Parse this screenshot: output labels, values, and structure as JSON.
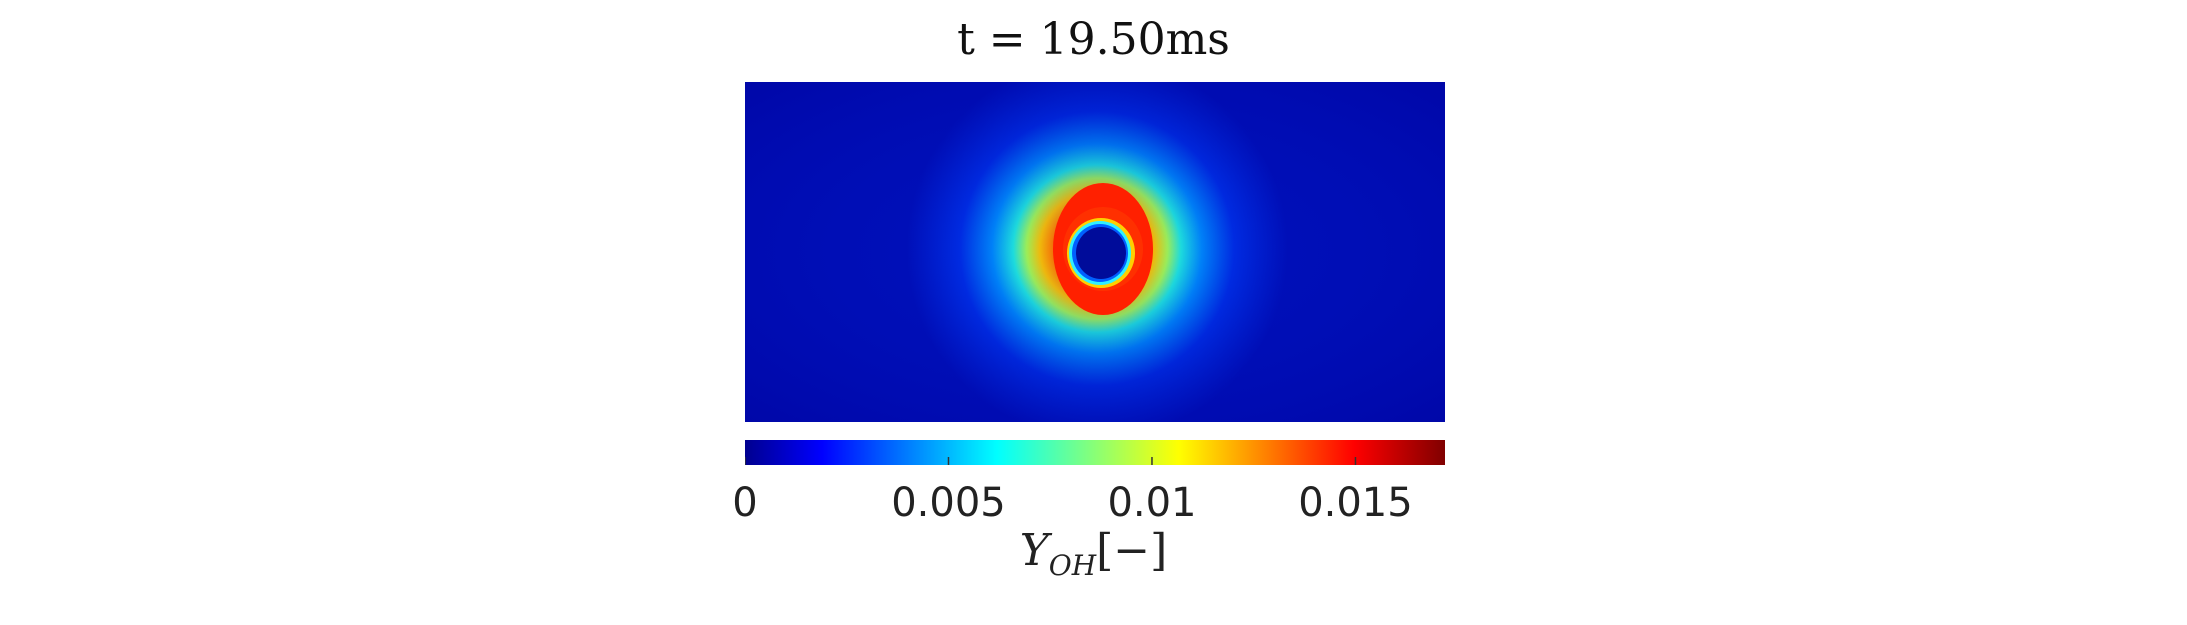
{
  "chart_data": {
    "type": "heatmap",
    "title": "t = 19.50ms",
    "colormap": "jet",
    "colorbar": {
      "orientation": "horizontal",
      "range": [
        0,
        0.0172
      ],
      "ticks": [
        0,
        0.005,
        0.01,
        0.015
      ],
      "tick_labels": [
        "0",
        "0.005",
        "0.01",
        "0.015"
      ],
      "label": {
        "symbol": "Y",
        "subscript": "OH",
        "unit": "[−]"
      }
    },
    "field": {
      "description_values": {
        "background": 0.0009,
        "ring_peak": 0.0158,
        "core": 0.0
      },
      "ring_center_fraction": [
        0.505,
        0.49
      ],
      "core_radius_fraction": 0.078,
      "ring_outer_radius_fraction": 0.25
    }
  }
}
